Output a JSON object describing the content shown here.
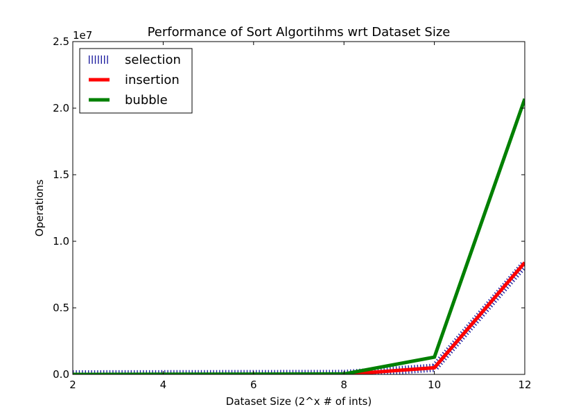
{
  "chart_data": {
    "type": "line",
    "title": "Performance of Sort Algortihms wrt Dataset Size",
    "xlabel": "Dataset Size (2^x # of ints)",
    "ylabel": "Operations",
    "y_offset_label": "1e7",
    "x": [
      2,
      8,
      10,
      12
    ],
    "xlim": [
      2,
      12
    ],
    "ylim": [
      0,
      25000000
    ],
    "x_ticks": [
      2,
      4,
      6,
      8,
      10,
      12
    ],
    "x_tick_labels": [
      "2",
      "4",
      "6",
      "8",
      "10",
      "12"
    ],
    "y_ticks": [
      0,
      5000000,
      10000000,
      15000000,
      20000000,
      25000000
    ],
    "y_tick_labels": [
      "0.0",
      "0.5",
      "1.0",
      "1.5",
      "2.0",
      "2.5"
    ],
    "grid": false,
    "legend_position": "top-left",
    "series": [
      {
        "name": "selection",
        "values": [
          0,
          30000,
          500000,
          8300000
        ],
        "color": "#2020a0",
        "style": "hatched"
      },
      {
        "name": "insertion",
        "values": [
          0,
          0,
          500000,
          8400000
        ],
        "color": "#ff0000",
        "style": "solid"
      },
      {
        "name": "bubble",
        "values": [
          0,
          30000,
          1300000,
          20700000
        ],
        "color": "#008000",
        "style": "solid"
      }
    ]
  }
}
